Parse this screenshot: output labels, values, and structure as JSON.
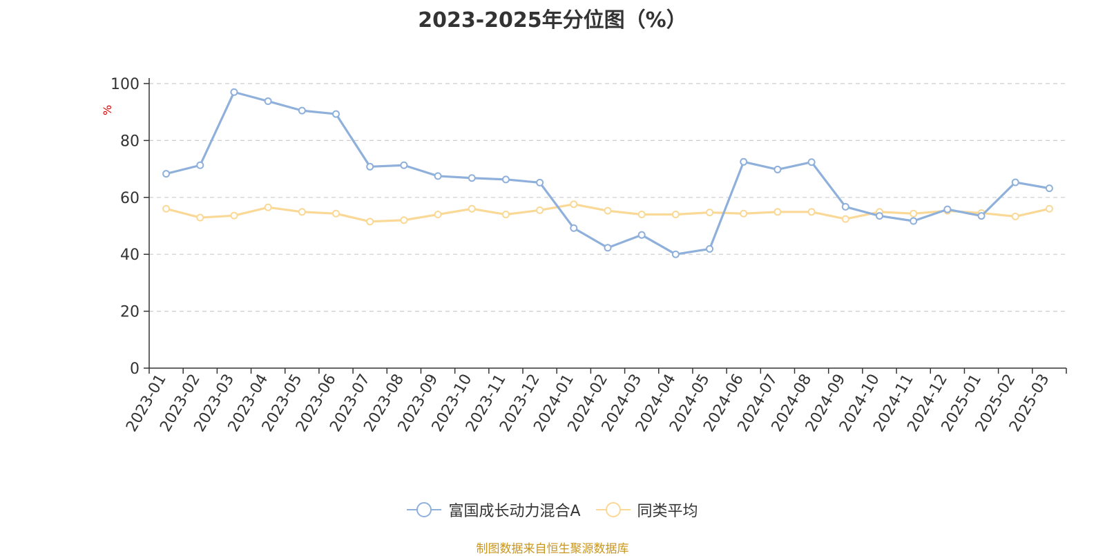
{
  "chart_data": {
    "type": "line",
    "title": "2023-2025年分位图（%）",
    "ylabel": "%",
    "xlabel": "",
    "ylim": [
      0,
      100
    ],
    "yticks": [
      0,
      20,
      40,
      60,
      80,
      100
    ],
    "grid": true,
    "legend_position": "bottom",
    "categories": [
      "2023-01",
      "2023-02",
      "2023-03",
      "2023-04",
      "2023-05",
      "2023-06",
      "2023-07",
      "2023-08",
      "2023-09",
      "2023-10",
      "2023-11",
      "2023-12",
      "2024-01",
      "2024-02",
      "2024-03",
      "2024-04",
      "2024-05",
      "2024-06",
      "2024-07",
      "2024-08",
      "2024-09",
      "2024-10",
      "2024-11",
      "2024-12",
      "2025-01",
      "2025-02",
      "2025-03"
    ],
    "series": [
      {
        "name": "富国成长动力混合A",
        "color": "#8eb0da",
        "values": [
          68.3,
          71.3,
          97.0,
          93.8,
          90.5,
          89.3,
          70.8,
          71.3,
          67.5,
          66.8,
          66.3,
          65.2,
          49.2,
          42.3,
          46.8,
          40.0,
          41.9,
          72.5,
          69.8,
          72.4,
          56.7,
          53.5,
          51.7,
          55.8,
          53.5,
          65.3,
          63.2
        ]
      },
      {
        "name": "同类平均",
        "color": "#fad896",
        "values": [
          56.0,
          52.9,
          53.6,
          56.5,
          54.9,
          54.3,
          51.5,
          52.0,
          54.0,
          56.0,
          54.0,
          55.5,
          57.6,
          55.3,
          54.0,
          54.0,
          54.7,
          54.3,
          54.9,
          54.9,
          52.4,
          54.9,
          54.3,
          55.3,
          54.5,
          53.3,
          56.0
        ]
      }
    ]
  },
  "source_text": "制图数据来自恒生聚源数据库"
}
